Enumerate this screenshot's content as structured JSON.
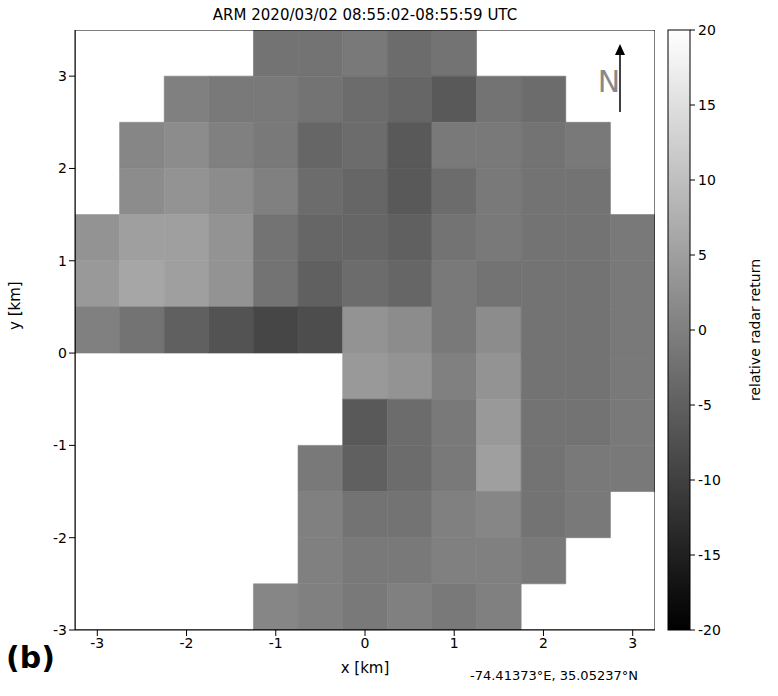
{
  "chart_data": {
    "type": "heatmap",
    "title": "ARM 2020/03/02 08:55:02-08:55:59 UTC",
    "x_label": "x [km]",
    "y_label": "y [km]",
    "panel": "(b)",
    "annotations": {
      "north": "N",
      "location": "-74.41373°E, 35.05237°N"
    },
    "xlim": [
      -3.25,
      3.25
    ],
    "ylim": [
      -3,
      3.5
    ],
    "xticks": [
      -3,
      -2,
      -1,
      0,
      1,
      2,
      3
    ],
    "yticks": [
      -3,
      -2,
      -1,
      0,
      1,
      2,
      3
    ],
    "grid": false,
    "x": [
      -3,
      -2.5,
      -2,
      -1.5,
      -1,
      -0.5,
      0,
      0.5,
      1,
      1.5,
      2,
      2.5,
      3
    ],
    "y": [
      3.25,
      2.75,
      2.25,
      1.75,
      1.25,
      0.75,
      0.25,
      -0.25,
      -0.75,
      -1.25,
      -1.75,
      -2.25,
      -2.75
    ],
    "values": [
      [
        null,
        null,
        null,
        null,
        -2,
        -2,
        -1,
        -3,
        -2,
        null,
        null,
        null,
        null
      ],
      [
        null,
        null,
        0,
        -1,
        -1,
        -2,
        -3,
        -4,
        -6,
        -2,
        -3,
        null,
        null
      ],
      [
        null,
        1,
        2,
        0,
        -1,
        -4,
        -3,
        -6,
        -1,
        -1,
        -2,
        -1,
        null
      ],
      [
        null,
        2,
        3,
        2,
        0,
        -3,
        -4,
        -6,
        -3,
        -1,
        -2,
        -2,
        null
      ],
      [
        3,
        5,
        5,
        3,
        -2,
        -4,
        -4,
        -5,
        -2,
        -1,
        -2,
        -2,
        -1
      ],
      [
        4,
        6,
        5,
        3,
        -2,
        -5,
        -3,
        -4,
        -1,
        -2,
        -2,
        -2,
        -1
      ],
      [
        0,
        -2,
        -5,
        -7,
        -9,
        -8,
        3,
        2,
        -1,
        2,
        -2,
        -2,
        -1
      ],
      [
        null,
        null,
        null,
        null,
        null,
        null,
        4,
        3,
        0,
        3,
        -2,
        -2,
        -1
      ],
      [
        null,
        null,
        null,
        null,
        null,
        null,
        -6,
        -3,
        -1,
        4,
        -2,
        -2,
        -1
      ],
      [
        null,
        null,
        null,
        null,
        null,
        -1,
        -5,
        -3,
        -1,
        5,
        -2,
        -1,
        -1
      ],
      [
        null,
        null,
        null,
        null,
        null,
        0,
        -2,
        -2,
        0,
        1,
        -2,
        -1,
        null
      ],
      [
        null,
        null,
        null,
        null,
        null,
        0,
        -1,
        -1,
        0,
        0,
        -1,
        null,
        null
      ],
      [
        null,
        null,
        null,
        null,
        1,
        0,
        -1,
        0,
        -1,
        0,
        null,
        null,
        null
      ]
    ],
    "colorbar": {
      "label": "relative radar return",
      "range": [
        -20,
        20
      ],
      "ticks": [
        -20,
        -15,
        -10,
        -5,
        0,
        5,
        10,
        15,
        20
      ]
    }
  }
}
